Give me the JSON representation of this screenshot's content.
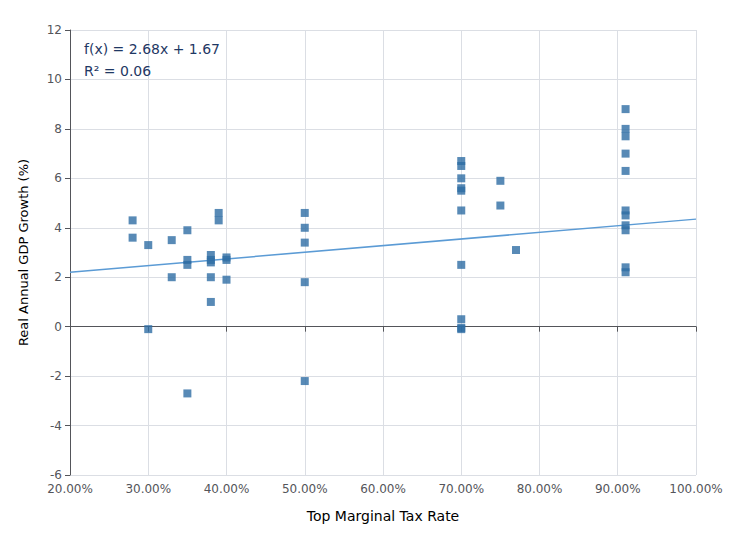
{
  "chart_data": {
    "type": "scatter",
    "xlabel": "Top Marginal Tax Rate",
    "ylabel": "Real Annual GDP Growth (%)",
    "xlim": [
      0.2,
      1.0
    ],
    "ylim": [
      -6,
      12
    ],
    "xticks": [
      {
        "value": 0.2,
        "label": "20.00%"
      },
      {
        "value": 0.3,
        "label": "30.00%"
      },
      {
        "value": 0.4,
        "label": "40.00%"
      },
      {
        "value": 0.5,
        "label": "50.00%"
      },
      {
        "value": 0.6,
        "label": "60.00%"
      },
      {
        "value": 0.7,
        "label": "70.00%"
      },
      {
        "value": 0.8,
        "label": "80.00%"
      },
      {
        "value": 0.9,
        "label": "90.00%"
      },
      {
        "value": 1.0,
        "label": "100.00%"
      }
    ],
    "yticks": [
      -6,
      -4,
      -2,
      0,
      2,
      4,
      6,
      8,
      10,
      12
    ],
    "grid": true,
    "annotations": [
      "f(x) = 2.68x + 1.67",
      "R² = 0.06"
    ],
    "series": [
      {
        "type": "scatter",
        "marker": "square",
        "color": "#2e6da4",
        "x": [
          0.28,
          0.28,
          0.3,
          0.3,
          0.33,
          0.33,
          0.35,
          0.35,
          0.35,
          0.38,
          0.38,
          0.38,
          0.38,
          0.38,
          0.39,
          0.39,
          0.4,
          0.4,
          0.4,
          0.5,
          0.5,
          0.5,
          0.5,
          0.7,
          0.7,
          0.7,
          0.7,
          0.7,
          0.7,
          0.7,
          0.7,
          0.75,
          0.75,
          0.77,
          0.91,
          0.91,
          0.91,
          0.91,
          0.91,
          0.91,
          0.91,
          0.91,
          0.91,
          0.91,
          0.91,
          0.35,
          0.5,
          0.7,
          0.7
        ],
        "values": [
          4.3,
          3.6,
          -0.1,
          3.3,
          3.5,
          2.0,
          3.9,
          2.5,
          2.7,
          2.7,
          2.6,
          2.0,
          2.9,
          1.0,
          4.3,
          4.6,
          2.8,
          2.7,
          1.9,
          4.6,
          4.0,
          3.4,
          1.8,
          6.7,
          6.5,
          6.0,
          5.6,
          5.5,
          4.7,
          2.5,
          -0.1,
          5.9,
          4.9,
          3.1,
          8.8,
          8.0,
          7.7,
          7.0,
          6.3,
          4.7,
          4.5,
          4.1,
          3.9,
          2.4,
          2.2,
          -2.7,
          -2.2,
          0.3,
          -0.05
        ]
      },
      {
        "type": "line",
        "color": "#5b9bd5",
        "x": [
          0.2,
          1.0
        ],
        "values": [
          2.206,
          4.35
        ]
      }
    ]
  }
}
